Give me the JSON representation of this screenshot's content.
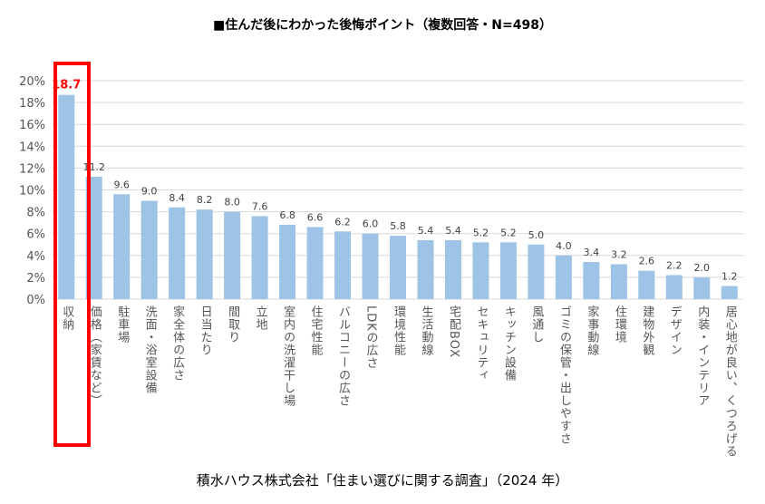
{
  "chart_data": {
    "type": "bar",
    "title": "■住んだ後にわかった後悔ポイント（複数回答・N=498）",
    "source": "積水ハウス株式会社「住まい選びに関する調査」（2024 年）",
    "xlabel": "",
    "ylabel": "",
    "ylim": [
      0,
      20
    ],
    "yticks": [
      "0%",
      "2%",
      "4%",
      "6%",
      "8%",
      "10%",
      "12%",
      "14%",
      "16%",
      "18%",
      "20%"
    ],
    "grid": true,
    "highlight_index": 0,
    "categories": [
      "収納",
      "価格（家賃など）",
      "駐車場",
      "洗面・浴室設備",
      "家全体の広さ",
      "日当たり",
      "間取り",
      "立地",
      "室内の洗濯干し場",
      "住宅性能",
      "バルコニーの広さ",
      "LDKの広さ",
      "環境性能",
      "生活動線",
      "宅配BOX",
      "セキュリティ",
      "キッチン設備",
      "風通し",
      "ゴミの保管・出しやすさ",
      "家事動線",
      "住環境",
      "建物外観",
      "デザイン",
      "内装・インテリア",
      "居心地が良い、くつろげる"
    ],
    "values": [
      18.7,
      11.2,
      9.6,
      9.0,
      8.4,
      8.2,
      8.0,
      7.6,
      6.8,
      6.6,
      6.2,
      6.0,
      5.8,
      5.4,
      5.4,
      5.2,
      5.2,
      5.0,
      4.0,
      3.4,
      3.2,
      2.6,
      2.2,
      2.0,
      1.2
    ],
    "labels": [
      "18.7",
      "11.2",
      "9.6",
      "9.0",
      "8.4",
      "8.2",
      "8.0",
      "7.6",
      "6.8",
      "6.6",
      "6.2",
      "6.0",
      "5.8",
      "5.4",
      "5.4",
      "5.2",
      "5.2",
      "5.0",
      "4.0",
      "3.4",
      "3.2",
      "2.6",
      "2.2",
      "2.0",
      "1.2"
    ],
    "colors": {
      "bar": "#9dc3e6",
      "highlight_label": "#ff0000",
      "highlight_box": "#ff0000",
      "grid": "#d9d9d9"
    }
  }
}
